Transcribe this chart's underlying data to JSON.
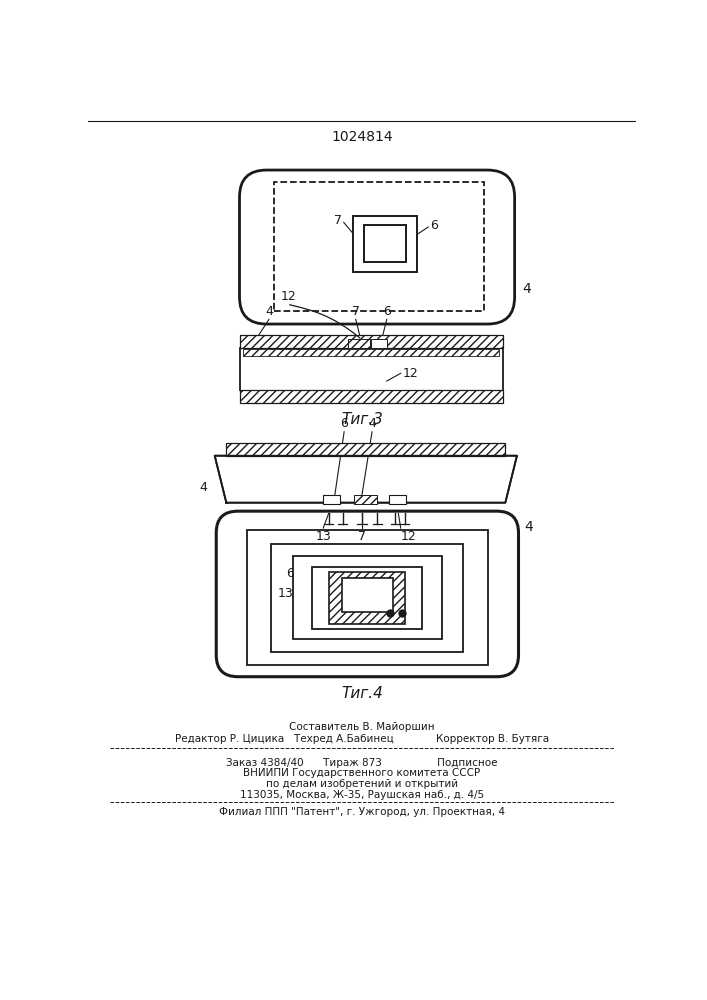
{
  "patent_number": "1024814",
  "fig3_label": "Τиг.3",
  "fig4_label": "Τиг.4",
  "footer_lines": [
    "Составитель В. Майоршин",
    "Редактор Р. Цицика   Техред А.Бабинец             Корректор В. Бутяга",
    "Заказ 4384/40      Тираж 873                 Подписное",
    "ВНИИПИ Государственного комитета СССР",
    "по делам изобретений и открытий",
    "113035, Москва, Ж-35, Раушская наб., д. 4/5",
    "Филиал ППП \"Патент\", г. Ужгород, ул. Проектная, 4"
  ],
  "line_color": "#1a1a1a"
}
